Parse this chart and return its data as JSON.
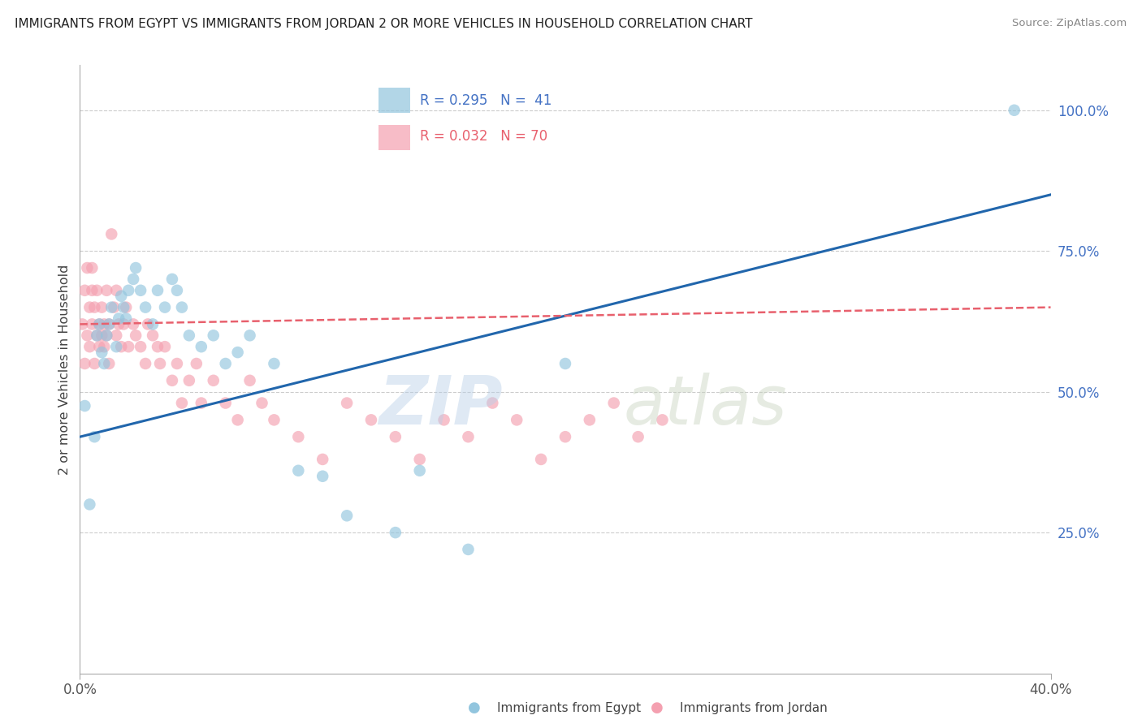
{
  "title": "IMMIGRANTS FROM EGYPT VS IMMIGRANTS FROM JORDAN 2 OR MORE VEHICLES IN HOUSEHOLD CORRELATION CHART",
  "source": "Source: ZipAtlas.com",
  "ylabel": "2 or more Vehicles in Household",
  "right_yticks": [
    "100.0%",
    "75.0%",
    "50.0%",
    "25.0%"
  ],
  "right_ytick_vals": [
    1.0,
    0.75,
    0.5,
    0.25
  ],
  "watermark_zip": "ZIP",
  "watermark_atlas": "atlas",
  "xlim": [
    0.0,
    0.4
  ],
  "ylim": [
    0.0,
    1.08
  ],
  "egypt_color": "#92c5de",
  "jordan_color": "#f4a0b0",
  "egypt_line_color": "#2166ac",
  "jordan_line_color": "#d6604d",
  "grid_color": "#cccccc",
  "background_color": "#ffffff",
  "egypt_scatter_x": [
    0.002,
    0.004,
    0.006,
    0.007,
    0.008,
    0.009,
    0.01,
    0.011,
    0.012,
    0.013,
    0.015,
    0.016,
    0.017,
    0.018,
    0.019,
    0.02,
    0.022,
    0.023,
    0.025,
    0.027,
    0.03,
    0.032,
    0.035,
    0.038,
    0.04,
    0.042,
    0.045,
    0.05,
    0.055,
    0.06,
    0.065,
    0.07,
    0.08,
    0.09,
    0.1,
    0.11,
    0.13,
    0.14,
    0.16,
    0.2,
    0.385
  ],
  "egypt_scatter_y": [
    0.475,
    0.3,
    0.42,
    0.6,
    0.62,
    0.57,
    0.55,
    0.6,
    0.62,
    0.65,
    0.58,
    0.63,
    0.67,
    0.65,
    0.63,
    0.68,
    0.7,
    0.72,
    0.68,
    0.65,
    0.62,
    0.68,
    0.65,
    0.7,
    0.68,
    0.65,
    0.6,
    0.58,
    0.6,
    0.55,
    0.57,
    0.6,
    0.55,
    0.36,
    0.35,
    0.28,
    0.25,
    0.36,
    0.22,
    0.55,
    1.0
  ],
  "jordan_scatter_x": [
    0.001,
    0.002,
    0.002,
    0.003,
    0.003,
    0.004,
    0.004,
    0.005,
    0.005,
    0.005,
    0.006,
    0.006,
    0.007,
    0.007,
    0.008,
    0.008,
    0.009,
    0.009,
    0.01,
    0.01,
    0.011,
    0.011,
    0.012,
    0.012,
    0.013,
    0.014,
    0.015,
    0.015,
    0.016,
    0.017,
    0.018,
    0.019,
    0.02,
    0.022,
    0.023,
    0.025,
    0.027,
    0.028,
    0.03,
    0.032,
    0.033,
    0.035,
    0.038,
    0.04,
    0.042,
    0.045,
    0.048,
    0.05,
    0.055,
    0.06,
    0.065,
    0.07,
    0.075,
    0.08,
    0.09,
    0.1,
    0.11,
    0.12,
    0.13,
    0.14,
    0.15,
    0.16,
    0.17,
    0.18,
    0.19,
    0.2,
    0.21,
    0.22,
    0.23,
    0.24
  ],
  "jordan_scatter_y": [
    0.62,
    0.55,
    0.68,
    0.6,
    0.72,
    0.58,
    0.65,
    0.62,
    0.68,
    0.72,
    0.55,
    0.65,
    0.6,
    0.68,
    0.58,
    0.62,
    0.6,
    0.65,
    0.58,
    0.62,
    0.6,
    0.68,
    0.55,
    0.62,
    0.78,
    0.65,
    0.6,
    0.68,
    0.62,
    0.58,
    0.62,
    0.65,
    0.58,
    0.62,
    0.6,
    0.58,
    0.55,
    0.62,
    0.6,
    0.58,
    0.55,
    0.58,
    0.52,
    0.55,
    0.48,
    0.52,
    0.55,
    0.48,
    0.52,
    0.48,
    0.45,
    0.52,
    0.48,
    0.45,
    0.42,
    0.38,
    0.48,
    0.45,
    0.42,
    0.38,
    0.45,
    0.42,
    0.48,
    0.45,
    0.38,
    0.42,
    0.45,
    0.48,
    0.42,
    0.45
  ],
  "egypt_trend_x": [
    0.0,
    0.4
  ],
  "egypt_trend_y": [
    0.42,
    0.85
  ],
  "jordan_trend_x": [
    0.0,
    0.4
  ],
  "jordan_trend_y": [
    0.62,
    0.65
  ],
  "legend_egypt_text": "R = 0.295   N =  41",
  "legend_jordan_text": "R = 0.032   N = 70",
  "legend_egypt_color": "#4472c4",
  "legend_jordan_color": "#e8606d"
}
